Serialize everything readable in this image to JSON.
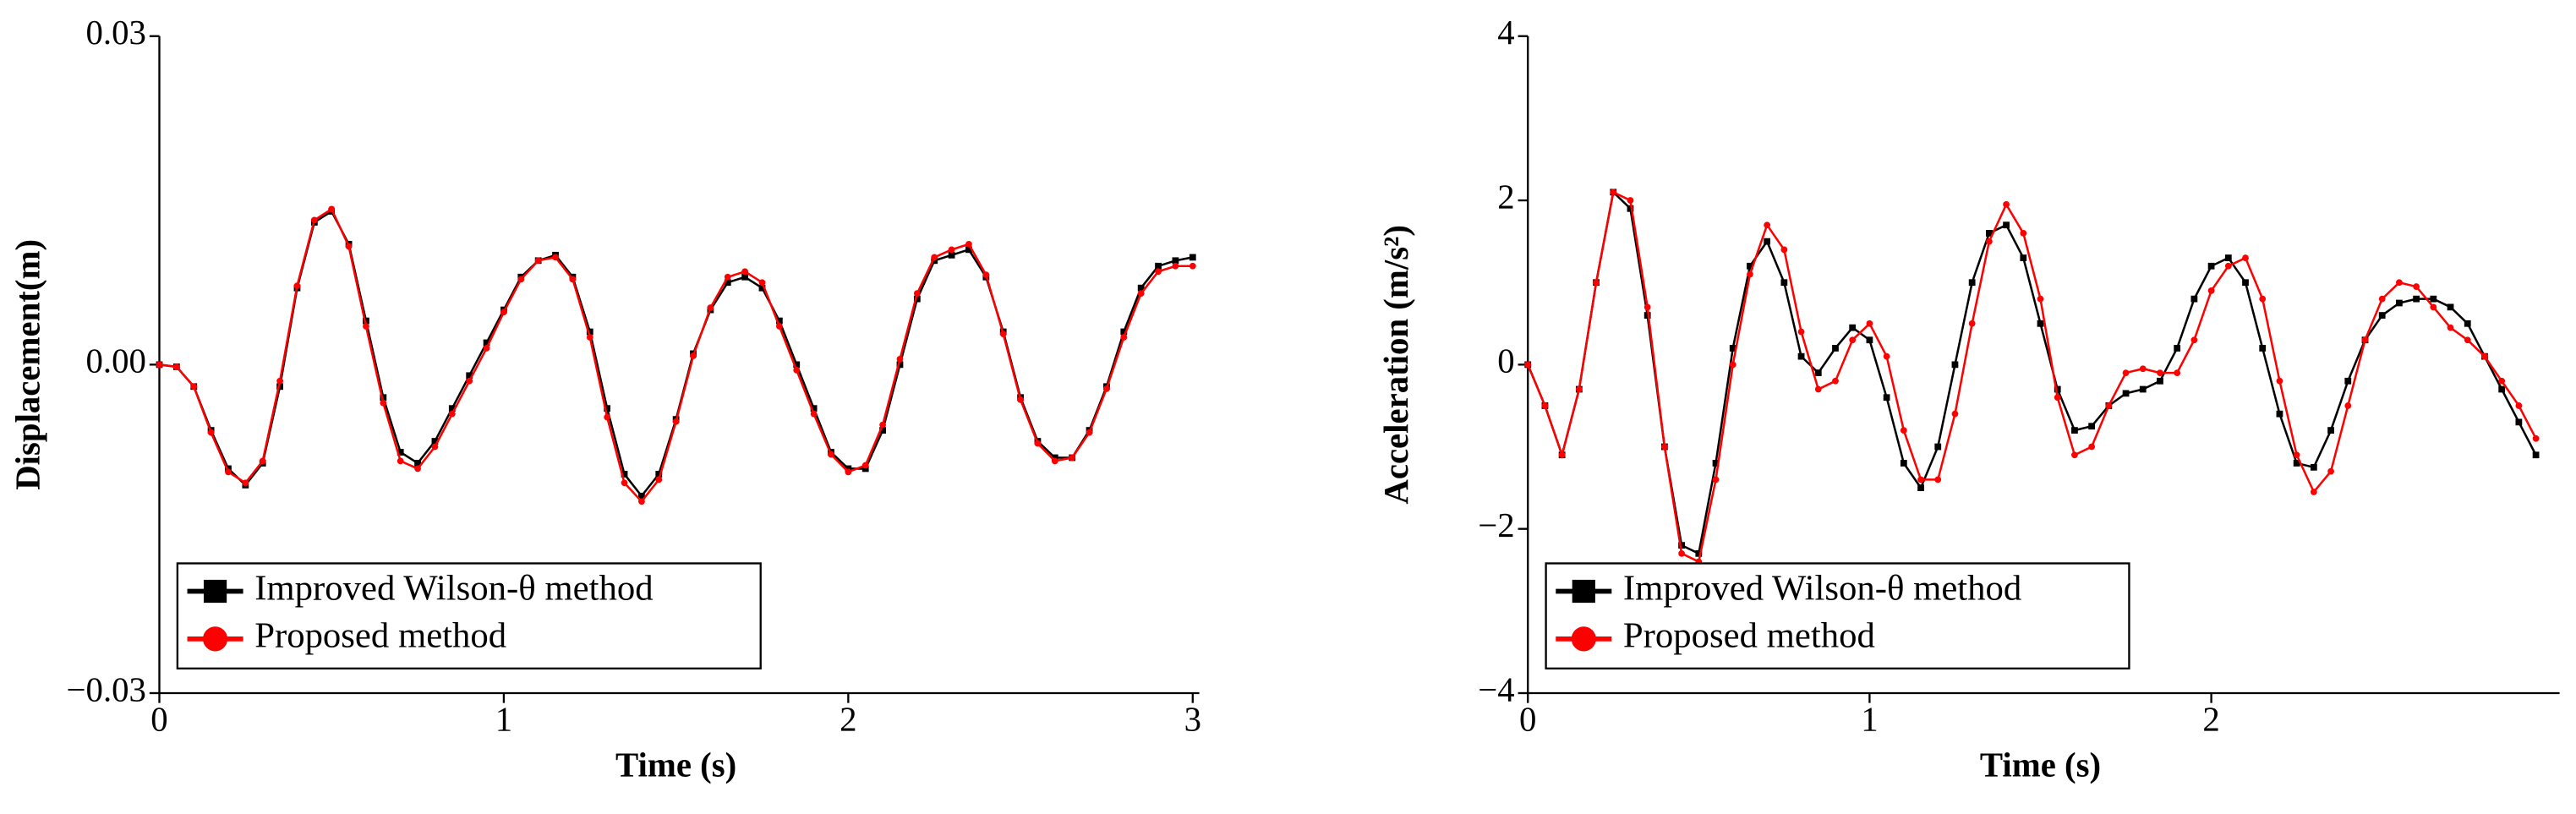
{
  "chart_data": [
    {
      "type": "line",
      "ylabel": "Displacement(m)",
      "xlabel": "Time (s)",
      "xlim": [
        0,
        3
      ],
      "xticks": [
        0,
        1,
        2,
        3
      ],
      "ylim": [
        -0.03,
        0.03
      ],
      "yticks": [
        {
          "value": -0.03,
          "label": "−0.03"
        },
        {
          "value": 0,
          "label": "0.00"
        },
        0.03
      ],
      "legend": "lower left",
      "x": [
        0,
        0.05,
        0.1,
        0.15,
        0.2,
        0.25,
        0.3,
        0.35,
        0.4,
        0.45,
        0.5,
        0.55,
        0.6,
        0.65,
        0.7,
        0.75,
        0.8,
        0.85,
        0.9,
        0.95,
        1,
        1.05,
        1.1,
        1.15,
        1.2,
        1.25,
        1.3,
        1.35,
        1.4,
        1.45,
        1.5,
        1.55,
        1.6,
        1.65,
        1.7,
        1.75,
        1.8,
        1.85,
        1.9,
        1.95,
        2,
        2.05,
        2.1,
        2.15,
        2.2,
        2.25,
        2.3,
        2.35,
        2.4,
        2.45,
        2.5,
        2.55,
        2.6,
        2.65,
        2.7,
        2.75,
        2.8,
        2.85,
        2.9,
        2.95,
        3
      ],
      "series": [
        {
          "name": "Improved Wilson-θ method",
          "color": "#000000",
          "marker": "square",
          "values": [
            0,
            -0.0002,
            -0.002,
            -0.006,
            -0.0095,
            -0.011,
            -0.009,
            -0.002,
            0.007,
            0.013,
            0.014,
            0.011,
            0.004,
            -0.003,
            -0.008,
            -0.009,
            -0.007,
            -0.004,
            -0.001,
            0.002,
            0.005,
            0.008,
            0.0095,
            0.01,
            0.008,
            0.003,
            -0.004,
            -0.01,
            -0.012,
            -0.01,
            -0.005,
            0.001,
            0.005,
            0.0075,
            0.008,
            0.007,
            0.004,
            0,
            -0.004,
            -0.008,
            -0.0095,
            -0.0095,
            -0.006,
            0,
            0.006,
            0.0095,
            0.01,
            0.0105,
            0.008,
            0.003,
            -0.003,
            -0.007,
            -0.0085,
            -0.0085,
            -0.006,
            -0.002,
            0.003,
            0.007,
            0.009,
            0.0095,
            0.0098
          ]
        },
        {
          "name": "Proposed method",
          "color": "#ff0000",
          "marker": "circle",
          "values": [
            0,
            -0.0002,
            -0.002,
            -0.0062,
            -0.0098,
            -0.0108,
            -0.0088,
            -0.0015,
            0.0072,
            0.0132,
            0.0142,
            0.0108,
            0.0035,
            -0.0035,
            -0.0088,
            -0.0095,
            -0.0075,
            -0.0045,
            -0.0015,
            0.0015,
            0.0048,
            0.0078,
            0.0095,
            0.0098,
            0.0078,
            0.0025,
            -0.0048,
            -0.0108,
            -0.0125,
            -0.0105,
            -0.0052,
            0.0008,
            0.0052,
            0.008,
            0.0085,
            0.0075,
            0.0035,
            -0.0005,
            -0.0045,
            -0.0082,
            -0.0098,
            -0.0092,
            -0.0055,
            0.0005,
            0.0065,
            0.0098,
            0.0105,
            0.011,
            0.0082,
            0.0028,
            -0.0032,
            -0.0072,
            -0.0088,
            -0.0085,
            -0.0062,
            -0.0022,
            0.0025,
            0.0065,
            0.0085,
            0.009,
            0.009
          ]
        }
      ]
    },
    {
      "type": "line",
      "ylabel": "Acceleration (m/s²)",
      "xlabel": "Time (s)",
      "xlim": [
        0,
        3
      ],
      "xticks": [
        0,
        1,
        2
      ],
      "ylim": [
        -4,
        4
      ],
      "yticks": [
        {
          "value": -4,
          "label": "−4"
        },
        {
          "value": -2,
          "label": "−2"
        },
        0,
        2,
        4
      ],
      "legend": "lower left",
      "x": [
        0,
        0.05,
        0.1,
        0.15,
        0.2,
        0.25,
        0.3,
        0.35,
        0.4,
        0.45,
        0.5,
        0.55,
        0.6,
        0.65,
        0.7,
        0.75,
        0.8,
        0.85,
        0.9,
        0.95,
        1,
        1.05,
        1.1,
        1.15,
        1.2,
        1.25,
        1.3,
        1.35,
        1.4,
        1.45,
        1.5,
        1.55,
        1.6,
        1.65,
        1.7,
        1.75,
        1.8,
        1.85,
        1.9,
        1.95,
        2,
        2.05,
        2.1,
        2.15,
        2.2,
        2.25,
        2.3,
        2.35,
        2.4,
        2.45,
        2.5,
        2.55,
        2.6,
        2.65,
        2.7,
        2.75,
        2.8,
        2.85,
        2.9,
        2.95
      ],
      "series": [
        {
          "name": "Improved Wilson-θ method",
          "color": "#000000",
          "marker": "square",
          "values": [
            0,
            -0.5,
            -1.1,
            -0.3,
            1.0,
            2.1,
            1.9,
            0.6,
            -1.0,
            -2.2,
            -2.3,
            -1.2,
            0.2,
            1.2,
            1.5,
            1.0,
            0.1,
            -0.1,
            0.2,
            0.45,
            0.3,
            -0.4,
            -1.2,
            -1.5,
            -1.0,
            0.0,
            1.0,
            1.6,
            1.7,
            1.3,
            0.5,
            -0.3,
            -0.8,
            -0.75,
            -0.5,
            -0.35,
            -0.3,
            -0.2,
            0.2,
            0.8,
            1.2,
            1.3,
            1.0,
            0.2,
            -0.6,
            -1.2,
            -1.25,
            -0.8,
            -0.2,
            0.3,
            0.6,
            0.75,
            0.8,
            0.8,
            0.7,
            0.5,
            0.1,
            -0.3,
            -0.7,
            -1.1
          ]
        },
        {
          "name": "Proposed method",
          "color": "#ff0000",
          "marker": "circle",
          "values": [
            0,
            -0.5,
            -1.1,
            -0.3,
            1.0,
            2.1,
            2.0,
            0.7,
            -1.0,
            -2.3,
            -2.4,
            -1.4,
            0.0,
            1.1,
            1.7,
            1.4,
            0.4,
            -0.3,
            -0.2,
            0.3,
            0.5,
            0.1,
            -0.8,
            -1.4,
            -1.4,
            -0.6,
            0.5,
            1.5,
            1.95,
            1.6,
            0.8,
            -0.4,
            -1.1,
            -1.0,
            -0.5,
            -0.1,
            -0.05,
            -0.1,
            -0.1,
            0.3,
            0.9,
            1.2,
            1.3,
            0.8,
            -0.2,
            -1.1,
            -1.55,
            -1.3,
            -0.5,
            0.3,
            0.8,
            1.0,
            0.95,
            0.7,
            0.45,
            0.3,
            0.1,
            -0.2,
            -0.5,
            -0.9
          ]
        }
      ]
    }
  ]
}
